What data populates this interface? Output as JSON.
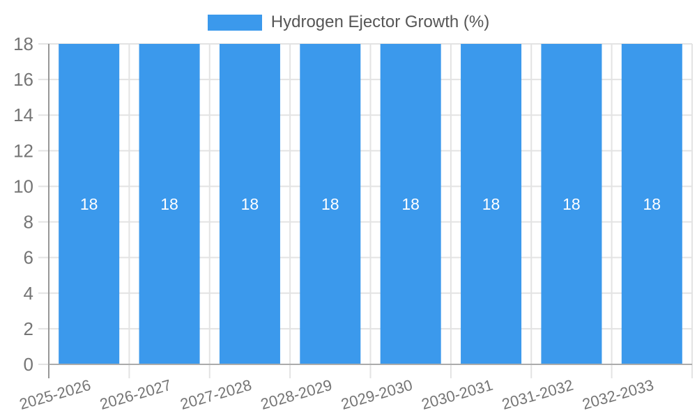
{
  "chart_data": {
    "type": "bar",
    "categories": [
      "2025-2026",
      "2026-2027",
      "2027-2028",
      "2028-2029",
      "2029-2030",
      "2030-2031",
      "2031-2032",
      "2032-2033"
    ],
    "series": [
      {
        "name": "Hydrogen Ejector Growth (%)",
        "values": [
          18,
          18,
          18,
          18,
          18,
          18,
          18,
          18
        ],
        "data_labels": [
          "18",
          "18",
          "18",
          "18",
          "18",
          "18",
          "18",
          "18"
        ]
      }
    ],
    "title": "",
    "xlabel": "",
    "ylabel": "",
    "ylim": [
      0,
      18
    ],
    "yticks": [
      0,
      2,
      4,
      6,
      8,
      10,
      12,
      14,
      16,
      18
    ],
    "grid": true,
    "legend": {
      "position": "top",
      "label": "Hydrogen Ejector Growth (%)"
    },
    "colors": {
      "bar": "#3b99ec",
      "bar_label": "#ffffff",
      "grid": "#e3e3e3",
      "axis_line": "#979797",
      "bottom_axis_line": "#ababab",
      "axis_text": "#757575",
      "legend_text": "#565656",
      "background": "#ffffff"
    }
  }
}
